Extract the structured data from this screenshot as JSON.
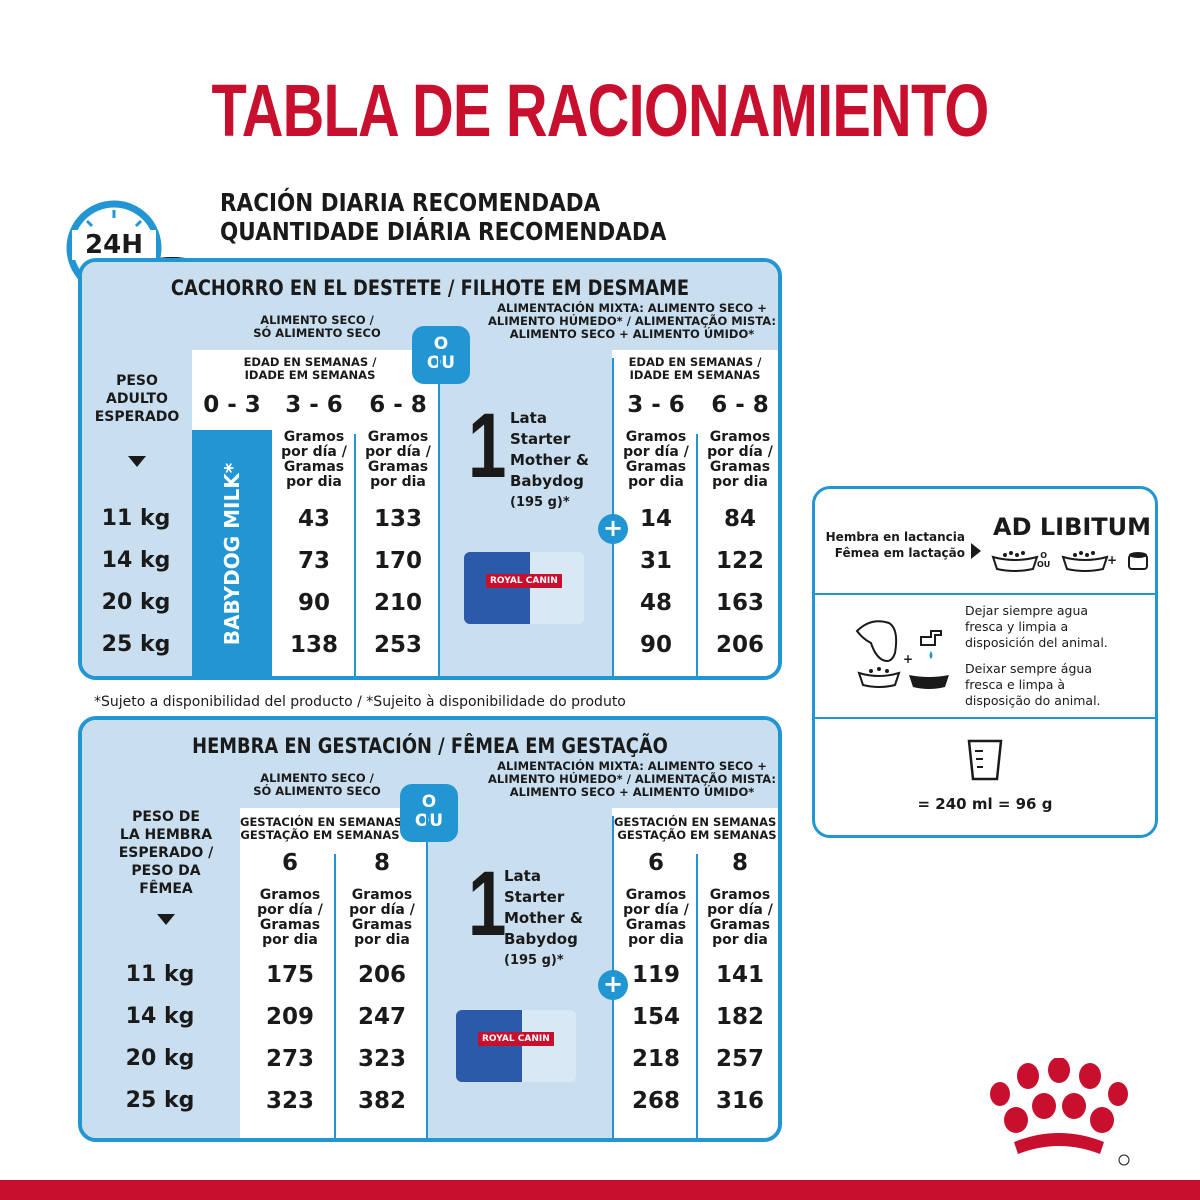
{
  "title": "TABLA DE RACIONAMIENTO",
  "subtitle_es": "RACIÓN DIARIA RECOMENDADA",
  "subtitle_pt": "QUANTIDADE DIÁRIA RECOMENDADA",
  "clock_label": "24H",
  "or_es": "O",
  "or_pt": "OU",
  "plus": "+",
  "puppy": {
    "header": "CACHORRO EN EL DESTETE / FILHOTE EM DESMAME",
    "dry_label_1": "ALIMENTO SECO /",
    "dry_label_2": "SÓ ALIMENTO SECO",
    "mixed_label_1": "ALIMENTACIÓN MIXTA: ALIMENTO SECO +",
    "mixed_label_2": "ALIMENTO HÚMEDO* / ALIMENTAÇÃO MISTA:",
    "mixed_label_3": "ALIMENTO SECO + ALIMENTO ÚMIDO*",
    "age_label_1": "EDAD EN SEMANAS /",
    "age_label_2": "IDADE EM SEMANAS",
    "weight_label": [
      "PESO",
      "ADULTO",
      "ESPERADO"
    ],
    "col_babydog": "0 - 3",
    "babydog_milk": "BABYDOG MILK*",
    "weeks": [
      "3 - 6",
      "6 - 8"
    ],
    "gramos": [
      "Gramos",
      "por día /",
      "Gramas",
      "por dia"
    ],
    "lata": {
      "one": "1",
      "lines": [
        "Lata",
        "Starter",
        "Mother &",
        "Babydog",
        "(195 g)*"
      ]
    },
    "can_brand": "ROYAL CANIN",
    "weights": [
      "11 kg",
      "14 kg",
      "20 kg",
      "25 kg"
    ],
    "dry": [
      [
        "43",
        "133"
      ],
      [
        "73",
        "170"
      ],
      [
        "90",
        "210"
      ],
      [
        "138",
        "253"
      ]
    ],
    "mixed": [
      [
        "14",
        "84"
      ],
      [
        "31",
        "122"
      ],
      [
        "48",
        "163"
      ],
      [
        "90",
        "206"
      ]
    ]
  },
  "footnote": "*Sujeto a disponibilidad del producto / *Sujeito à disponibilidade do produto",
  "pregnant": {
    "header": "HEMBRA EN GESTACIÓN / FÊMEA EM GESTAÇÃO",
    "dry_label_1": "ALIMENTO SECO /",
    "dry_label_2": "SÓ ALIMENTO SECO",
    "mixed_label_1": "ALIMENTACIÓN MIXTA: ALIMENTO SECO +",
    "mixed_label_2": "ALIMENTO HÚMEDO* / ALIMENTAÇÃO MISTA:",
    "mixed_label_3": "ALIMENTO SECO + ALIMENTO ÚMIDO*",
    "gest_label_1": "GESTACIÓN EN SEMANAS /",
    "gest_label_2": "GESTAÇÃO EM SEMANAS",
    "weight_label": [
      "PESO DE",
      "LA HEMBRA",
      "ESPERADO /",
      "PESO DA",
      "FÊMEA"
    ],
    "weeks": [
      "6",
      "8"
    ],
    "gramos": [
      "Gramos",
      "por día /",
      "Gramas",
      "por dia"
    ],
    "lata": {
      "one": "1",
      "lines": [
        "Lata",
        "Starter",
        "Mother &",
        "Babydog",
        "(195 g)*"
      ]
    },
    "can_brand": "ROYAL CANIN",
    "weights": [
      "11 kg",
      "14 kg",
      "20 kg",
      "25 kg"
    ],
    "dry": [
      [
        "175",
        "206"
      ],
      [
        "209",
        "247"
      ],
      [
        "273",
        "323"
      ],
      [
        "323",
        "382"
      ]
    ],
    "mixed": [
      [
        "119",
        "141"
      ],
      [
        "154",
        "182"
      ],
      [
        "218",
        "257"
      ],
      [
        "268",
        "316"
      ]
    ]
  },
  "side": {
    "lact_es": "Hembra en lactancia",
    "lact_pt": "Fêmea em lactação",
    "ad_libitum": "AD LIBITUM",
    "or_small_1": "O",
    "or_small_2": "OU",
    "water_es": [
      "Dejar siempre agua",
      "fresca y limpia a",
      "disposición del animal."
    ],
    "water_pt": [
      "Deixar sempre água",
      "fresca e limpa à",
      "disposição do animal."
    ],
    "measure": "= 240 ml = 96 g"
  },
  "colors": {
    "red": "#c8102e",
    "blue": "#2196d3",
    "light_blue": "#c9dff0"
  }
}
